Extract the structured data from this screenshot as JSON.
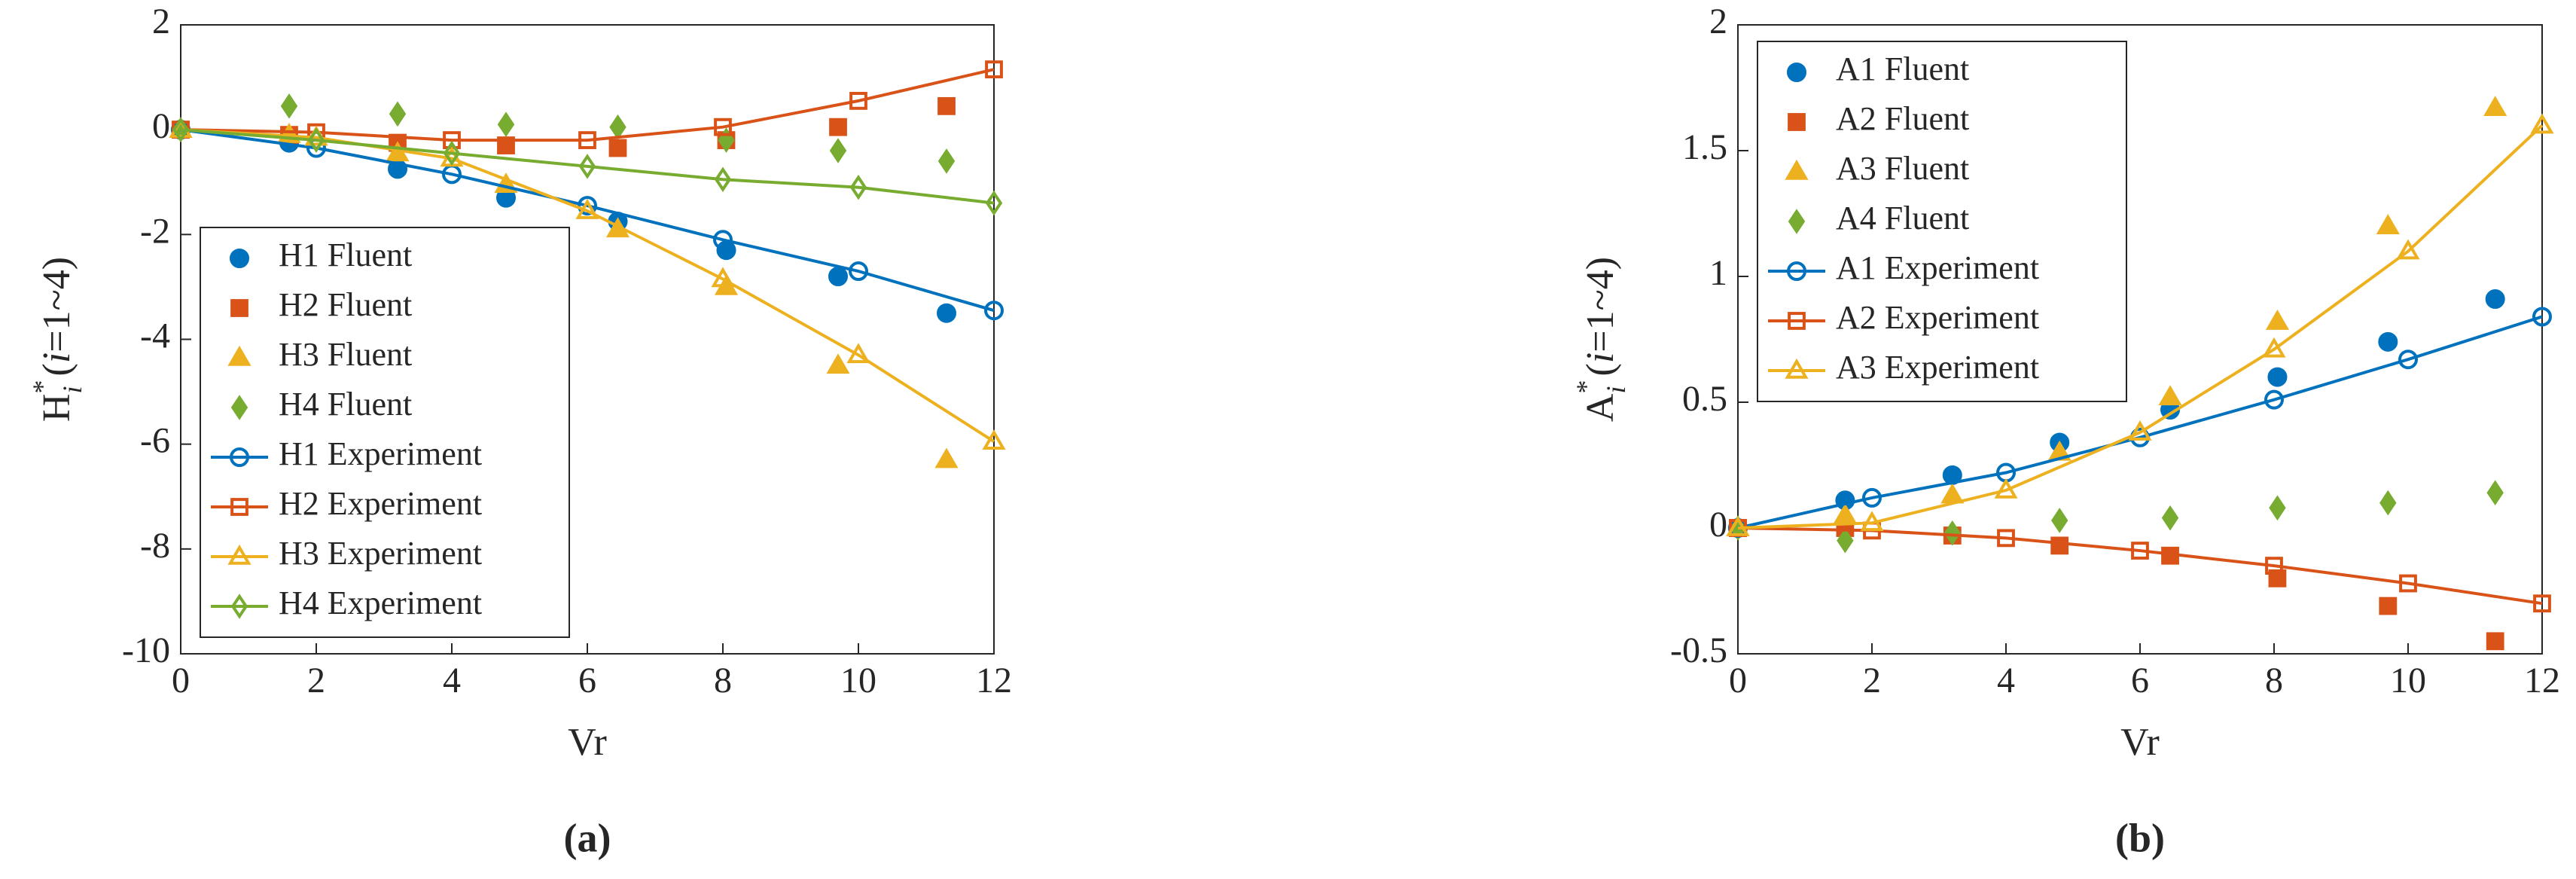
{
  "chart_data": [
    {
      "type": "line",
      "caption": "(a)",
      "xlabel": "Vr",
      "ylabel": [
        "H",
        "*",
        "i",
        " (",
        "i",
        "=1~4)"
      ],
      "xlim": [
        0,
        12
      ],
      "ylim": [
        -10,
        2
      ],
      "xticks": [
        0,
        2,
        4,
        6,
        8,
        10,
        12
      ],
      "yticks": [
        -10,
        -8,
        -6,
        -4,
        -2,
        0,
        2
      ],
      "legend": "southwest",
      "series": [
        {
          "name": "H1 Fluent",
          "color": "#0072BD",
          "marker": "circle",
          "filled": true,
          "line": false,
          "x": [
            0,
            1.6,
            3.2,
            4.8,
            6.45,
            8.05,
            9.7,
            11.3
          ],
          "values": [
            0,
            -0.25,
            -0.75,
            -1.3,
            -1.75,
            -2.3,
            -2.8,
            -3.5
          ]
        },
        {
          "name": "H2 Fluent",
          "color": "#D95319",
          "marker": "square",
          "filled": true,
          "line": false,
          "x": [
            0,
            1.6,
            3.2,
            4.8,
            6.45,
            8.05,
            9.7,
            11.3
          ],
          "values": [
            0,
            -0.1,
            -0.25,
            -0.3,
            -0.35,
            -0.2,
            0.05,
            0.45
          ]
        },
        {
          "name": "H3 Fluent",
          "color": "#EDB120",
          "marker": "triangle",
          "filled": true,
          "line": false,
          "x": [
            0,
            1.6,
            3.2,
            4.8,
            6.45,
            8.05,
            9.7,
            11.3
          ],
          "values": [
            0,
            -0.1,
            -0.45,
            -1.05,
            -1.9,
            -3.0,
            -4.5,
            -6.3
          ]
        },
        {
          "name": "H4 Fluent",
          "color": "#77AC30",
          "marker": "diamond",
          "filled": true,
          "line": false,
          "x": [
            0,
            1.6,
            3.2,
            4.8,
            6.45,
            8.05,
            9.7,
            11.3
          ],
          "values": [
            0,
            0.45,
            0.3,
            0.1,
            0.05,
            -0.2,
            -0.4,
            -0.6
          ]
        },
        {
          "name": "H1 Experiment",
          "color": "#0072BD",
          "marker": "circle",
          "filled": false,
          "line": true,
          "x": [
            0,
            2,
            4,
            6,
            8,
            10,
            12
          ],
          "values": [
            0,
            -0.35,
            -0.85,
            -1.45,
            -2.1,
            -2.7,
            -3.45
          ]
        },
        {
          "name": "H2 Experiment",
          "color": "#D95319",
          "marker": "square",
          "filled": false,
          "line": true,
          "x": [
            0,
            2,
            4,
            6,
            8,
            10,
            12
          ],
          "values": [
            0,
            -0.05,
            -0.2,
            -0.2,
            0.05,
            0.55,
            1.15
          ]
        },
        {
          "name": "H3 Experiment",
          "color": "#EDB120",
          "marker": "triangle",
          "filled": false,
          "line": true,
          "x": [
            0,
            2,
            4,
            6,
            8,
            10,
            12
          ],
          "values": [
            0,
            -0.15,
            -0.55,
            -1.55,
            -2.85,
            -4.3,
            -5.95
          ]
        },
        {
          "name": "H4 Experiment",
          "color": "#77AC30",
          "marker": "diamond",
          "filled": false,
          "line": true,
          "x": [
            0,
            2,
            4,
            6,
            8,
            10,
            12
          ],
          "values": [
            0,
            -0.2,
            -0.45,
            -0.7,
            -0.95,
            -1.1,
            -1.4
          ]
        }
      ]
    },
    {
      "type": "line",
      "caption": "(b)",
      "xlabel": "Vr",
      "ylabel": [
        "A",
        "*",
        "i",
        " (",
        "i",
        "=1~4)"
      ],
      "xlim": [
        0,
        12
      ],
      "ylim": [
        -0.5,
        2
      ],
      "xticks": [
        0,
        2,
        4,
        6,
        8,
        10,
        12
      ],
      "yticks": [
        -0.5,
        0,
        0.5,
        1,
        1.5,
        2
      ],
      "legend": "northwest",
      "series": [
        {
          "name": "A1 Fluent",
          "color": "#0072BD",
          "marker": "circle",
          "filled": true,
          "line": false,
          "x": [
            0,
            1.6,
            3.2,
            4.8,
            6.45,
            8.05,
            9.7,
            11.3
          ],
          "values": [
            0,
            0.11,
            0.21,
            0.34,
            0.47,
            0.6,
            0.74,
            0.91
          ]
        },
        {
          "name": "A2 Fluent",
          "color": "#D95319",
          "marker": "square",
          "filled": true,
          "line": false,
          "x": [
            0,
            1.6,
            3.2,
            4.8,
            6.45,
            8.05,
            9.7,
            11.3
          ],
          "values": [
            0,
            0,
            -0.03,
            -0.07,
            -0.11,
            -0.2,
            -0.31,
            -0.45
          ]
        },
        {
          "name": "A3 Fluent",
          "color": "#EDB120",
          "marker": "triangle",
          "filled": true,
          "line": false,
          "x": [
            0,
            1.6,
            3.2,
            4.8,
            6.45,
            8.05,
            9.7,
            11.3
          ],
          "values": [
            0,
            0.05,
            0.13,
            0.3,
            0.52,
            0.82,
            1.2,
            1.67
          ]
        },
        {
          "name": "A4 Fluent",
          "color": "#77AC30",
          "marker": "diamond",
          "filled": true,
          "line": false,
          "x": [
            0,
            1.6,
            3.2,
            4.8,
            6.45,
            8.05,
            9.7,
            11.3
          ],
          "values": [
            0,
            -0.05,
            -0.02,
            0.03,
            0.04,
            0.08,
            0.1,
            0.14
          ]
        },
        {
          "name": "A1 Experiment",
          "color": "#0072BD",
          "marker": "circle",
          "filled": false,
          "line": true,
          "x": [
            0,
            2,
            4,
            6,
            8,
            10,
            12
          ],
          "values": [
            0,
            0.12,
            0.22,
            0.36,
            0.51,
            0.67,
            0.84
          ]
        },
        {
          "name": "A2 Experiment",
          "color": "#D95319",
          "marker": "square",
          "filled": false,
          "line": true,
          "x": [
            0,
            2,
            4,
            6,
            8,
            10,
            12
          ],
          "values": [
            0,
            -0.01,
            -0.04,
            -0.09,
            -0.15,
            -0.22,
            -0.3
          ]
        },
        {
          "name": "A3 Experiment",
          "color": "#EDB120",
          "marker": "triangle",
          "filled": false,
          "line": true,
          "x": [
            0,
            2,
            4,
            6,
            8,
            10,
            12
          ],
          "values": [
            0,
            0.02,
            0.15,
            0.38,
            0.71,
            1.1,
            1.6
          ]
        }
      ]
    }
  ]
}
